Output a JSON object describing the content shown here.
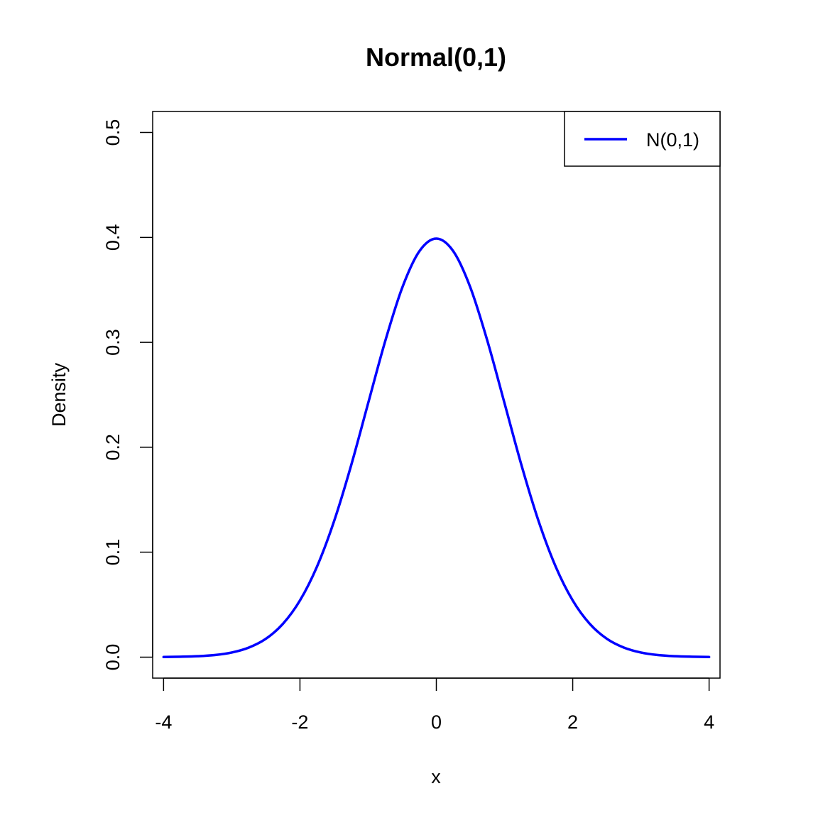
{
  "chart_data": {
    "type": "line",
    "title": "Normal(0,1)",
    "xlabel": "x",
    "ylabel": "Density",
    "xlim": [
      -4.16,
      4.16
    ],
    "ylim": [
      -0.02,
      0.52
    ],
    "x_ticks": [
      -4,
      -2,
      0,
      2,
      4
    ],
    "x_tick_labels": [
      "-4",
      "-2",
      "0",
      "2",
      "4"
    ],
    "y_ticks": [
      0.0,
      0.1,
      0.2,
      0.3,
      0.4,
      0.5
    ],
    "y_tick_labels": [
      "0.0",
      "0.1",
      "0.2",
      "0.3",
      "0.4",
      "0.5"
    ],
    "grid": false,
    "legend": {
      "position": "top-right",
      "entries": [
        {
          "label": "N(0,1)",
          "color": "#0000ff"
        }
      ]
    },
    "series": [
      {
        "name": "N(0,1)",
        "color": "#0000ff",
        "x": [
          -4.0,
          -3.75,
          -3.5,
          -3.25,
          -3.0,
          -2.75,
          -2.5,
          -2.25,
          -2.0,
          -1.75,
          -1.5,
          -1.25,
          -1.0,
          -0.75,
          -0.5,
          -0.25,
          0.0,
          0.25,
          0.5,
          0.75,
          1.0,
          1.25,
          1.5,
          1.75,
          2.0,
          2.25,
          2.5,
          2.75,
          3.0,
          3.25,
          3.5,
          3.75,
          4.0
        ],
        "y": [
          0.0001,
          0.0004,
          0.0009,
          0.002,
          0.0044,
          0.0091,
          0.0175,
          0.0317,
          0.054,
          0.0863,
          0.1295,
          0.1826,
          0.242,
          0.3011,
          0.3521,
          0.3867,
          0.3989,
          0.3867,
          0.3521,
          0.3011,
          0.242,
          0.1826,
          0.1295,
          0.0863,
          0.054,
          0.0317,
          0.0175,
          0.0091,
          0.0044,
          0.002,
          0.0009,
          0.0004,
          0.0001
        ]
      }
    ]
  }
}
